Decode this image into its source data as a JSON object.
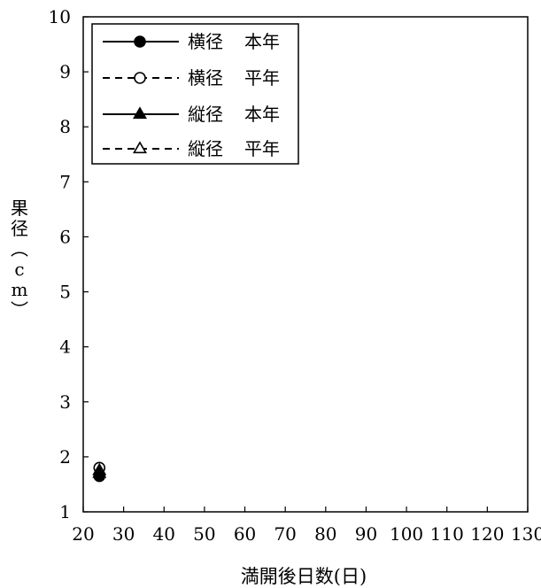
{
  "chart_data": {
    "type": "scatter",
    "xlabel": "満開後日数(日)",
    "ylabel": "果径(cm)",
    "xlim": [
      20,
      130
    ],
    "ylim": [
      1,
      10
    ],
    "x_ticks": [
      "20",
      "30",
      "40",
      "50",
      "60",
      "70",
      "80",
      "90",
      "100",
      "110",
      "120",
      "130"
    ],
    "y_ticks": [
      "1",
      "2",
      "3",
      "4",
      "5",
      "6",
      "7",
      "8",
      "9",
      "10"
    ],
    "grid": false,
    "legend_position": "top-left",
    "series": [
      {
        "name": "横径 本年",
        "marker": "circle-filled",
        "line": "solid",
        "points": [
          [
            24,
            1.65
          ]
        ]
      },
      {
        "name": "横径 平年",
        "marker": "circle-open",
        "line": "dashed",
        "points": [
          [
            24,
            1.8
          ]
        ]
      },
      {
        "name": "縦径 本年",
        "marker": "triangle-filled",
        "line": "solid",
        "points": [
          [
            24,
            1.7
          ]
        ]
      },
      {
        "name": "縦径 平年",
        "marker": "triangle-open",
        "line": "dashed",
        "points": [
          [
            24,
            1.75
          ]
        ]
      }
    ]
  }
}
